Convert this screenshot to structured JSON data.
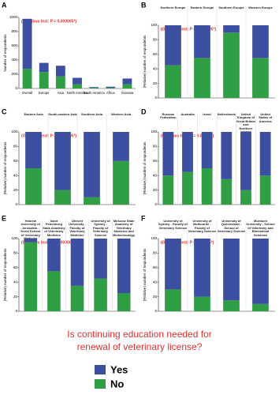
{
  "caption": [
    "Is continuing education needed for",
    "renewal of veterinary license?"
  ],
  "chart_data": [
    {
      "type": "bar",
      "panel": "A",
      "title": "(Omnibus test: P = 0.000005*)",
      "ylabel": "Number of respondents",
      "categories": [
        "Overall",
        "Europe",
        "Asia",
        "North America",
        "South America",
        "Africa",
        "Oceania"
      ],
      "series": [
        {
          "name": "No",
          "color": "#2f9e44",
          "values": [
            275,
            230,
            170,
            60,
            10,
            10,
            60
          ]
        },
        {
          "name": "Yes",
          "color": "#3d4fa0",
          "values": [
            705,
            130,
            150,
            90,
            10,
            15,
            80
          ]
        }
      ],
      "ylim": [
        0,
        1000
      ],
      "yticks": [
        0,
        200,
        400,
        600,
        800,
        1000
      ]
    },
    {
      "type": "bar",
      "panel": "B",
      "title": "(Omnibus test: P = 0.000005*)",
      "ylabel": "(Relative) number of respondents",
      "categories": [
        "Northern Europe",
        "Eastern Europe",
        "Southern Europe",
        "Western Europe"
      ],
      "series": [
        {
          "name": "No",
          "color": "#2f9e44",
          "values": [
            45,
            55,
            90,
            55
          ]
        },
        {
          "name": "Yes",
          "color": "#3d4fa0",
          "values": [
            55,
            45,
            10,
            45
          ]
        }
      ],
      "ylim": [
        0,
        100
      ],
      "yticks": [
        0,
        20,
        40,
        60,
        80,
        100
      ]
    },
    {
      "type": "bar",
      "panel": "C",
      "title": "(Omnibus test: P = 0.000005*)",
      "ylabel": "(Relative) number of respondents",
      "categories": [
        "Eastern Asia",
        "South-eastern Asia",
        "Southern Asia",
        "Western Asia"
      ],
      "series": [
        {
          "name": "No",
          "color": "#2f9e44",
          "values": [
            50,
            20,
            10,
            60
          ]
        },
        {
          "name": "Yes",
          "color": "#3d4fa0",
          "values": [
            50,
            80,
            90,
            40
          ]
        }
      ],
      "ylim": [
        0,
        100
      ],
      "yticks": [
        0,
        20,
        40,
        60,
        80,
        100
      ]
    },
    {
      "type": "bar",
      "panel": "D",
      "title": "(Omnibus test: P = 0.01035*)",
      "ylabel": "(Relative) number of respondents",
      "categories": [
        "Russian Federation",
        "Australia",
        "Israel",
        "Netherlands",
        "United Kingdom of Great Britain and Northern Ireland",
        "United States of America"
      ],
      "series": [
        {
          "name": "No",
          "color": "#2f9e44",
          "values": [
            40,
            45,
            50,
            35,
            20,
            40
          ]
        },
        {
          "name": "Yes",
          "color": "#3d4fa0",
          "values": [
            60,
            55,
            50,
            65,
            80,
            60
          ]
        }
      ],
      "ylim": [
        0,
        100
      ],
      "yticks": [
        0,
        20,
        40,
        60,
        80,
        100
      ]
    },
    {
      "type": "bar",
      "panel": "E",
      "title": "(Omnibus test: P = 0.000005*)",
      "ylabel": "(Relative) number of respondents",
      "categories": [
        "Hebrew University of Jerusalem - Koret School of Veterinary Medicine",
        "Saint Petersburg State Academy of Veterinary Medicine",
        "Utrecht University - Faculty of Veterinary Medicine",
        "University of Sydney - Faculty of Veterinary Science",
        "Moscow State Academy of Veterinary Medicine and Biotechnology"
      ],
      "series": [
        {
          "name": "No",
          "color": "#2f9e44",
          "values": [
            95,
            55,
            35,
            45,
            25
          ]
        },
        {
          "name": "Yes",
          "color": "#3d4fa0",
          "values": [
            5,
            45,
            65,
            55,
            75
          ]
        }
      ],
      "ylim": [
        0,
        100
      ],
      "yticks": [
        0,
        20,
        40,
        60,
        80,
        100
      ]
    },
    {
      "type": "bar",
      "panel": "F",
      "title": "(Omnibus test: P = 0.00005*)",
      "ylabel": "(Relative) number of respondents",
      "categories": [
        "University of Sydney - Faculty of Veterinary Science",
        "University of Melbourne - Faculty of Veterinary Science",
        "University of Queensland - School of Veterinary Science",
        "Murdoch University - School of Veterinary and Biomedical Sciences"
      ],
      "series": [
        {
          "name": "No",
          "color": "#2f9e44",
          "values": [
            30,
            20,
            15,
            10
          ]
        },
        {
          "name": "Yes",
          "color": "#3d4fa0",
          "values": [
            70,
            80,
            85,
            90
          ]
        }
      ],
      "ylim": [
        0,
        100
      ],
      "yticks": [
        0,
        20,
        40,
        60,
        80,
        100
      ]
    }
  ]
}
